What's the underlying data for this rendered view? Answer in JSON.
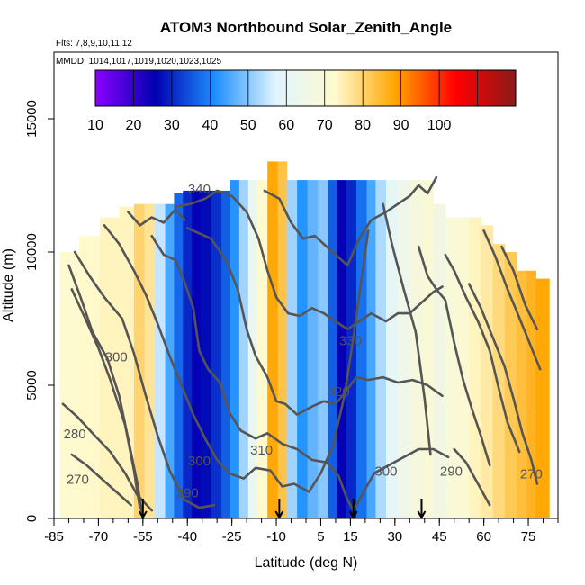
{
  "chart_data": {
    "type": "heatmap",
    "title": "ATOM3 Northbound Solar_Zenith_Angle",
    "flights_label": "Flts: 7,8,9,10,11,12",
    "mmdd_label": "MMDD: 1014,1017,1019,1020,1023,1025",
    "xlabel": "Latitude (deg N)",
    "ylabel": "Altitude (m)",
    "xlim": [
      -85,
      85
    ],
    "ylim": [
      0,
      17500
    ],
    "x_ticks": [
      -85,
      -70,
      -55,
      -40,
      -25,
      -10,
      5,
      15,
      30,
      45,
      60,
      75
    ],
    "y_ticks": [
      0,
      5000,
      10000,
      15000
    ],
    "colorbar": {
      "min": 10,
      "max": 120,
      "ticks": [
        10,
        20,
        30,
        40,
        50,
        60,
        70,
        80,
        90,
        100
      ],
      "colors": [
        "#8b00ff",
        "#0000b0",
        "#1e90ff",
        "#e0f4ff",
        "#fffacd",
        "#ffa500",
        "#ff0000",
        "#8b1a1a"
      ]
    },
    "columns": [
      {
        "lat": -80,
        "top": 10000,
        "value": 72
      },
      {
        "lat": -73,
        "top": 10600,
        "value": 73
      },
      {
        "lat": -66,
        "top": 11300,
        "value": 74
      },
      {
        "lat": -60,
        "top": 11700,
        "value": 74
      },
      {
        "lat": -56,
        "top": 11800,
        "value": 80
      },
      {
        "lat": -53,
        "top": 11800,
        "value": 77
      },
      {
        "lat": -49,
        "top": 11800,
        "value": 55
      },
      {
        "lat": -46,
        "top": 11800,
        "value": 45
      },
      {
        "lat": -43,
        "top": 12200,
        "value": 37
      },
      {
        "lat": -40,
        "top": 12300,
        "value": 30
      },
      {
        "lat": -37,
        "top": 12300,
        "value": 25
      },
      {
        "lat": -34,
        "top": 12300,
        "value": 27
      },
      {
        "lat": -30,
        "top": 12300,
        "value": 31
      },
      {
        "lat": -27,
        "top": 12300,
        "value": 36
      },
      {
        "lat": -24,
        "top": 12700,
        "value": 42
      },
      {
        "lat": -21,
        "top": 12700,
        "value": 52
      },
      {
        "lat": -18,
        "top": 12700,
        "value": 62
      },
      {
        "lat": -15,
        "top": 12700,
        "value": 72
      },
      {
        "lat": -11,
        "top": 13400,
        "value": 88
      },
      {
        "lat": -8,
        "top": 13400,
        "value": 83
      },
      {
        "lat": -5,
        "top": 12700,
        "value": 52
      },
      {
        "lat": -1,
        "top": 12700,
        "value": 42
      },
      {
        "lat": 2,
        "top": 12700,
        "value": 47
      },
      {
        "lat": 6,
        "top": 12700,
        "value": 50
      },
      {
        "lat": 9,
        "top": 12700,
        "value": 36
      },
      {
        "lat": 12,
        "top": 12700,
        "value": 25
      },
      {
        "lat": 15,
        "top": 12700,
        "value": 30
      },
      {
        "lat": 19,
        "top": 12700,
        "value": 38
      },
      {
        "lat": 22,
        "top": 12700,
        "value": 45
      },
      {
        "lat": 25,
        "top": 12700,
        "value": 53
      },
      {
        "lat": 29,
        "top": 12700,
        "value": 60
      },
      {
        "lat": 33,
        "top": 12700,
        "value": 64
      },
      {
        "lat": 37,
        "top": 12700,
        "value": 68
      },
      {
        "lat": 41,
        "top": 12700,
        "value": 70
      },
      {
        "lat": 45,
        "top": 11800,
        "value": 66
      },
      {
        "lat": 49,
        "top": 11300,
        "value": 69
      },
      {
        "lat": 53,
        "top": 11300,
        "value": 71
      },
      {
        "lat": 57,
        "top": 11300,
        "value": 74
      },
      {
        "lat": 61,
        "top": 11000,
        "value": 76
      },
      {
        "lat": 65,
        "top": 10300,
        "value": 79
      },
      {
        "lat": 69,
        "top": 10000,
        "value": 82
      },
      {
        "lat": 73,
        "top": 9300,
        "value": 84
      },
      {
        "lat": 76,
        "top": 9300,
        "value": 86
      },
      {
        "lat": 79,
        "top": 9000,
        "value": 88
      }
    ],
    "contour_labels": [
      {
        "text": "340",
        "lat": -36,
        "alt": 12200
      },
      {
        "text": "330",
        "lat": 15,
        "alt": 6500
      },
      {
        "text": "320",
        "lat": 11,
        "alt": 4600
      },
      {
        "text": "310",
        "lat": -15,
        "alt": 2400
      },
      {
        "text": "300",
        "lat": -64,
        "alt": 5900
      },
      {
        "text": "300",
        "lat": -36,
        "alt": 2000
      },
      {
        "text": "300",
        "lat": 27,
        "alt": 1600
      },
      {
        "text": "290",
        "lat": -40,
        "alt": 800
      },
      {
        "text": "290",
        "lat": 49,
        "alt": 1600
      },
      {
        "text": "280",
        "lat": -78,
        "alt": 3000
      },
      {
        "text": "270",
        "lat": -77,
        "alt": 1300
      },
      {
        "text": "270",
        "lat": 76,
        "alt": 1500
      }
    ],
    "flight_markers_lat": [
      -55,
      -9,
      16,
      39
    ]
  }
}
